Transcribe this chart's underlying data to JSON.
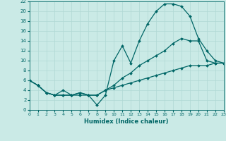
{
  "xlabel": "Humidex (Indice chaleur)",
  "xlim": [
    0,
    23
  ],
  "ylim": [
    0,
    22
  ],
  "xticks": [
    0,
    1,
    2,
    3,
    4,
    5,
    6,
    7,
    8,
    9,
    10,
    11,
    12,
    13,
    14,
    15,
    16,
    17,
    18,
    19,
    20,
    21,
    22,
    23
  ],
  "yticks": [
    0,
    2,
    4,
    6,
    8,
    10,
    12,
    14,
    16,
    18,
    20,
    22
  ],
  "bg_color": "#caeae6",
  "grid_color": "#b0d8d4",
  "line_color": "#006666",
  "line1_x": [
    0,
    1,
    2,
    3,
    4,
    5,
    6,
    7,
    8,
    9,
    10,
    11,
    12,
    13,
    14,
    15,
    16,
    17,
    18,
    19,
    20,
    21,
    22,
    23
  ],
  "line1_y": [
    6.0,
    5.0,
    3.5,
    3.0,
    4.0,
    3.0,
    3.0,
    3.0,
    1.0,
    3.0,
    10.0,
    13.0,
    9.5,
    14.0,
    17.5,
    20.0,
    21.5,
    21.5,
    21.0,
    19.0,
    14.5,
    12.0,
    10.0,
    9.5
  ],
  "line2_x": [
    0,
    1,
    2,
    3,
    4,
    5,
    6,
    7,
    8,
    9,
    10,
    11,
    12,
    13,
    14,
    15,
    16,
    17,
    18,
    19,
    20,
    21,
    22,
    23
  ],
  "line2_y": [
    6.0,
    5.0,
    3.5,
    3.0,
    3.0,
    3.0,
    3.5,
    3.0,
    3.0,
    4.0,
    5.0,
    6.5,
    7.5,
    9.0,
    10.0,
    11.0,
    12.0,
    13.5,
    14.5,
    14.0,
    14.0,
    10.0,
    9.5,
    9.5
  ],
  "line3_x": [
    0,
    1,
    2,
    3,
    4,
    5,
    6,
    7,
    8,
    9,
    10,
    11,
    12,
    13,
    14,
    15,
    16,
    17,
    18,
    19,
    20,
    21,
    22,
    23
  ],
  "line3_y": [
    6.0,
    5.0,
    3.5,
    3.0,
    3.0,
    3.0,
    3.5,
    3.0,
    3.0,
    4.0,
    4.5,
    5.0,
    5.5,
    6.0,
    6.5,
    7.0,
    7.5,
    8.0,
    8.5,
    9.0,
    9.0,
    9.0,
    9.5,
    9.5
  ]
}
